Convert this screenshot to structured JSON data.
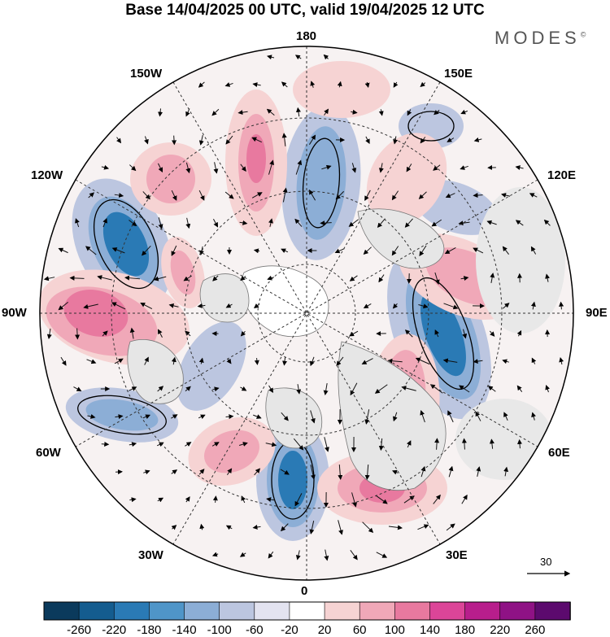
{
  "title": "Base 14/04/2025 00 UTC, valid 19/04/2025 12 UTC",
  "brand": "MODES",
  "brand_mark": "©",
  "longitude_labels": {
    "top": "180",
    "bottom": "0",
    "left": "90W",
    "right": "90E",
    "upper_left_1": "150W",
    "upper_left_2": "120W",
    "upper_right_1": "150E",
    "upper_right_2": "120E",
    "lower_left_1": "60W",
    "lower_left_2": "30W",
    "lower_right_1": "60E",
    "lower_right_2": "30E"
  },
  "reference_vector_label": "30",
  "colorbar": {
    "ticks": [
      "-260",
      "-220",
      "-180",
      "-140",
      "-100",
      "-60",
      "-20",
      "20",
      "60",
      "100",
      "140",
      "180",
      "220",
      "260"
    ],
    "colors": [
      "#0b3a5c",
      "#145c8f",
      "#2a7ab5",
      "#4f95c8",
      "#8caed6",
      "#bcc6e0",
      "#e3e3f0",
      "#ffffff",
      "#f6d3d3",
      "#f0a8b8",
      "#e8799f",
      "#dc4598",
      "#b81e8c",
      "#8f1285",
      "#5c0a6e"
    ]
  },
  "map": {
    "anomaly_colors": {
      "neg_strong": "#2a7ab5",
      "neg_mid": "#4f95c8",
      "neg_light": "#8caed6",
      "neg_faint": "#bcc6e0",
      "pos_faint": "#f6d3d3",
      "pos_light": "#f0a8b8",
      "pos_mid": "#e8799f",
      "land_grey": "#e8e8e8"
    }
  }
}
